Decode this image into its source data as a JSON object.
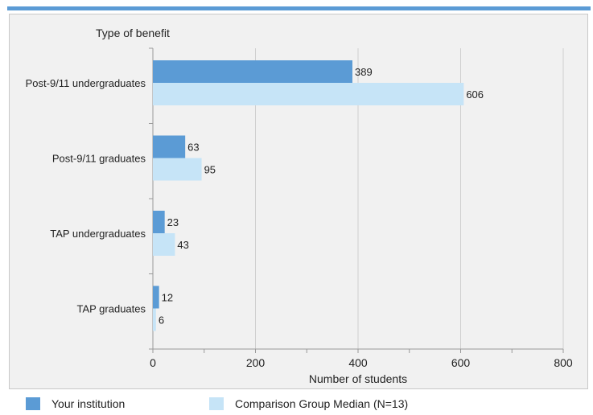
{
  "chart_data": {
    "type": "bar",
    "orientation": "horizontal",
    "title": "",
    "ylabel": "Type of benefit",
    "xlabel": "Number of students",
    "categories": [
      "Post-9/11 undergraduates",
      "Post-9/11 graduates",
      "TAP undergraduates",
      "TAP graduates"
    ],
    "series": [
      {
        "name": "Your institution",
        "values": [
          389,
          63,
          23,
          12
        ],
        "color": "#5b9bd5"
      },
      {
        "name": "Comparison Group Median (N=13)",
        "values": [
          606,
          95,
          43,
          6
        ],
        "color": "#c6e4f7"
      }
    ],
    "xlim": [
      0,
      800
    ],
    "xticks": [
      "0",
      "200",
      "400",
      "600",
      "800"
    ],
    "grid": true,
    "legend_position": "bottom"
  }
}
